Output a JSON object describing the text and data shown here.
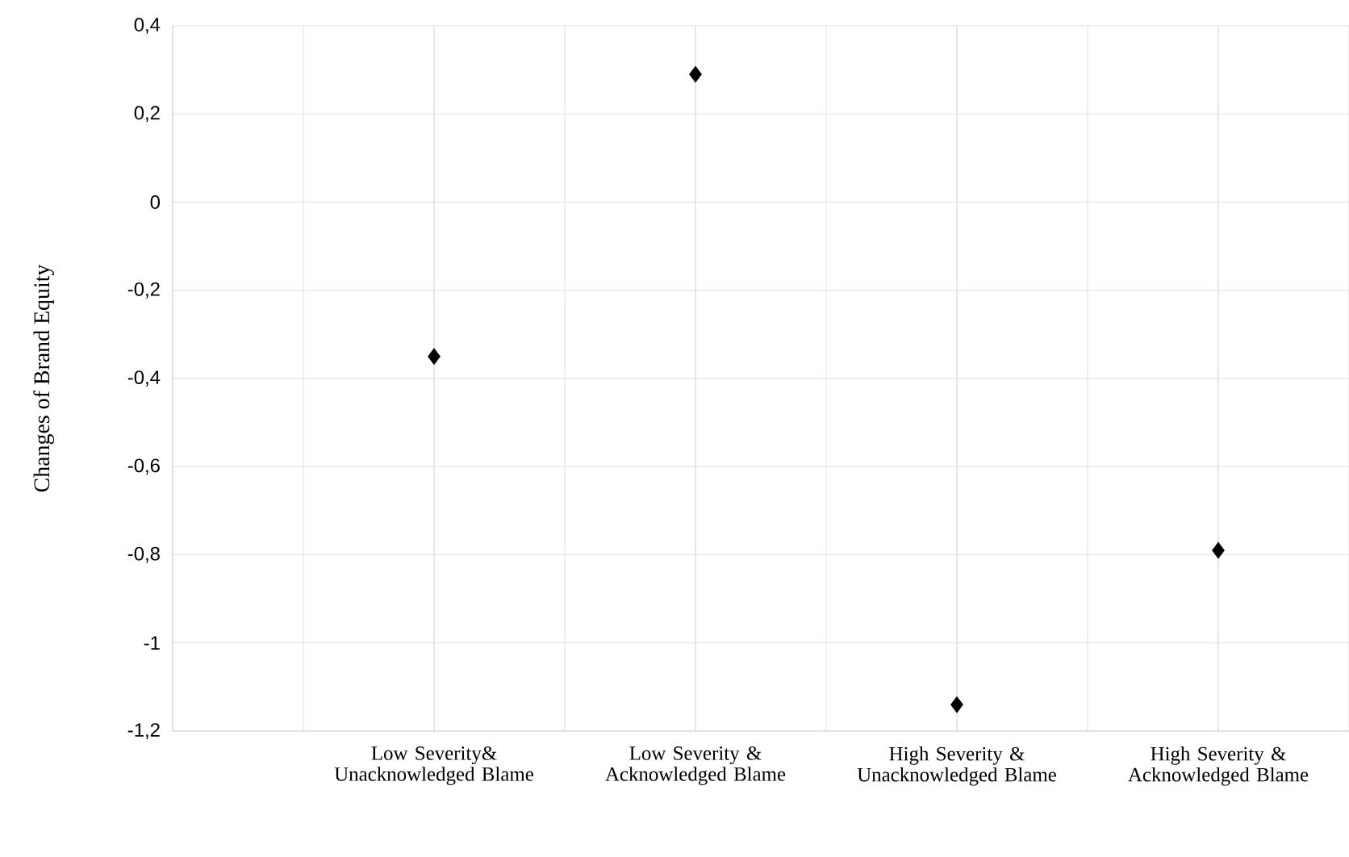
{
  "chart_data": {
    "type": "scatter",
    "ylabel": "Changes of Brand Equity",
    "categories": [
      "Low Severity& Unacknowledged Blame",
      "Low Severity & Acknowledged Blame",
      "High Severity & Unacknowledged Blame",
      "High Severity & Acknowledged Blame"
    ],
    "series": [
      {
        "color": "#000000",
        "values": [
          -0.35,
          0.29,
          -1.14,
          -0.79
        ]
      }
    ],
    "ylim": [
      -1.2,
      0.4
    ],
    "yticks": [
      {
        "value": -1.2,
        "label": "-1,2"
      },
      {
        "value": -1,
        "label": "-1"
      },
      {
        "value": -0.8,
        "label": "-0,8"
      },
      {
        "value": -0.6,
        "label": "-0,6"
      },
      {
        "value": -0.4,
        "label": "-0,4"
      },
      {
        "value": -0.2,
        "label": "-0,2"
      },
      {
        "value": 0,
        "label": "0"
      },
      {
        "value": 0.2,
        "label": "0,2"
      },
      {
        "value": 0.4,
        "label": "0,4"
      }
    ],
    "grid": true,
    "marker": "diamond"
  }
}
